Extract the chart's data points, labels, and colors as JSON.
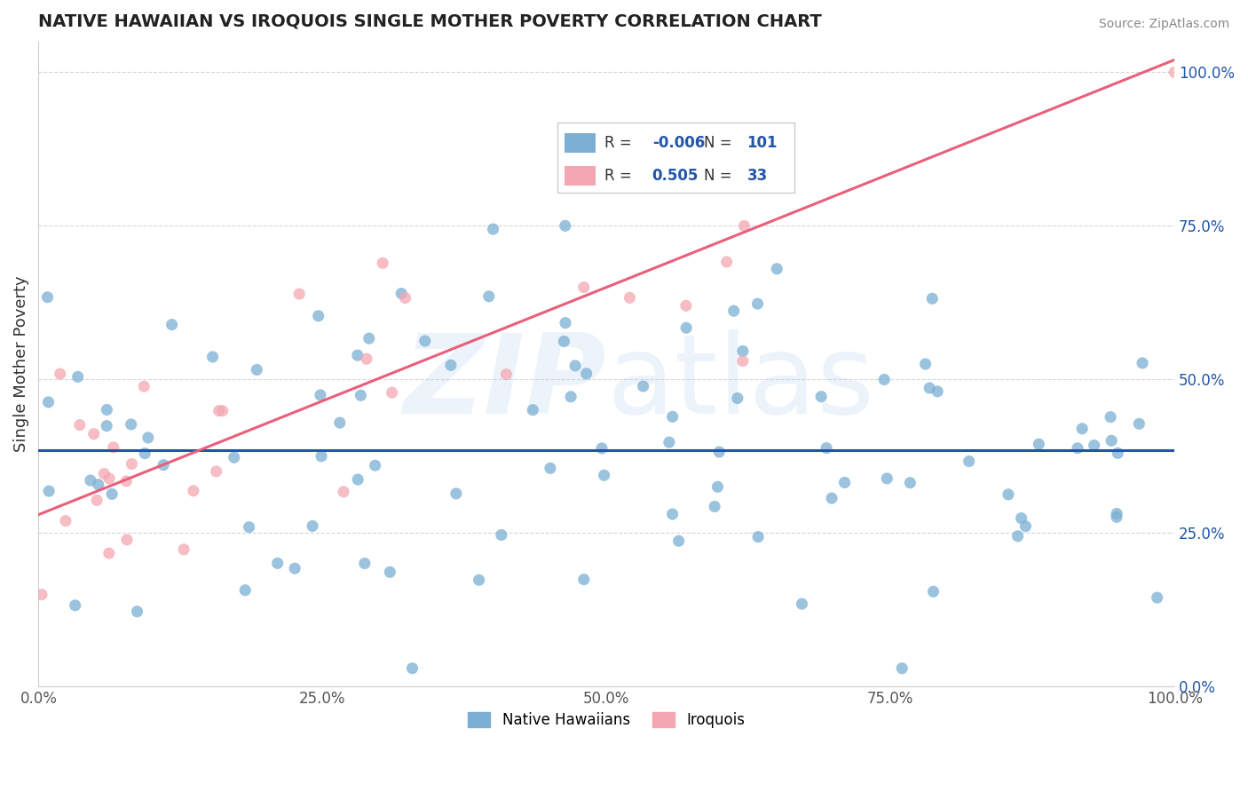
{
  "title": "NATIVE HAWAIIAN VS IROQUOIS SINGLE MOTHER POVERTY CORRELATION CHART",
  "source": "Source: ZipAtlas.com",
  "ylabel": "Single Mother Poverty",
  "watermark": "ZIPatlas",
  "xlim": [
    0.0,
    1.0
  ],
  "ylim": [
    0.0,
    1.05
  ],
  "xticks": [
    0.0,
    0.25,
    0.5,
    0.75,
    1.0
  ],
  "yticks": [
    0.0,
    0.25,
    0.5,
    0.75,
    1.0
  ],
  "xticklabels": [
    "0.0%",
    "25.0%",
    "50.0%",
    "75.0%",
    "100.0%"
  ],
  "yticklabels": [
    "0.0%",
    "25.0%",
    "50.0%",
    "75.0%",
    "100.0%"
  ],
  "color_blue": "#7BAFD4",
  "color_pink": "#F4A7B2",
  "line_blue": "#2255AA",
  "line_pink": "#E8607A",
  "background": "#FFFFFF",
  "blue_r": -0.006,
  "blue_n": 101,
  "pink_r": 0.505,
  "pink_n": 33,
  "blue_line_y0": 0.385,
  "blue_line_y1": 0.385,
  "pink_line_y0": 0.28,
  "pink_line_y1": 1.02,
  "legend_r1_val": "-0.006",
  "legend_n1_val": "101",
  "legend_r2_val": "0.505",
  "legend_n2_val": "33"
}
